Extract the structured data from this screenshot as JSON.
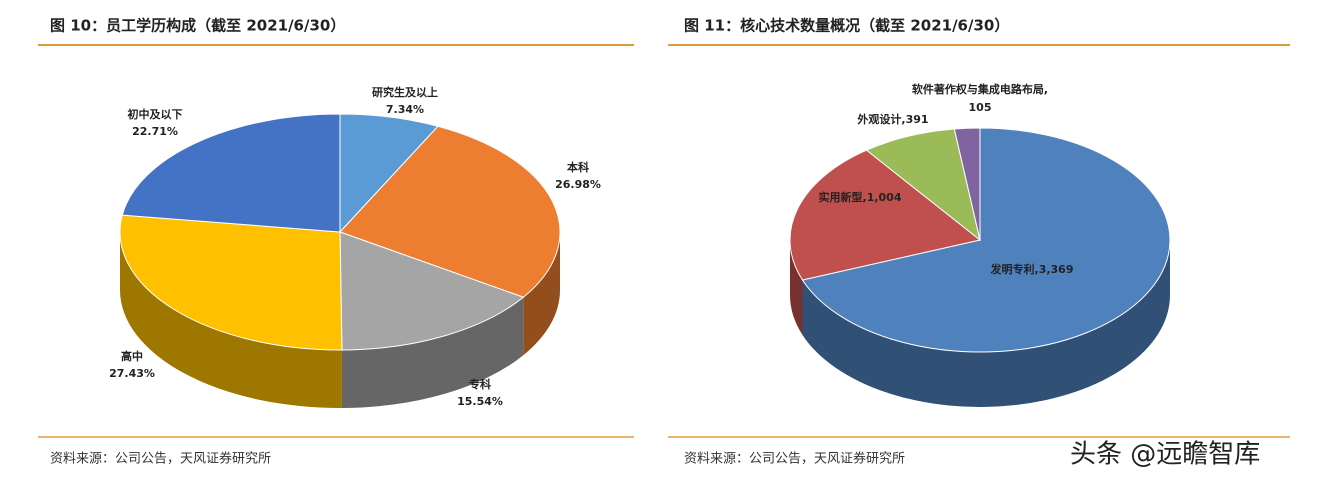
{
  "chart_data": [
    {
      "type": "pie3d",
      "title": "图 10：员工学历构成（截至 2021/6/30）",
      "categories": [
        "研究生及以上",
        "本科",
        "专科",
        "高中",
        "初中及以下"
      ],
      "values": [
        7.34,
        26.98,
        15.54,
        27.43,
        22.71
      ],
      "value_labels": [
        "7.34%",
        "26.98%",
        "15.54%",
        "27.43%",
        "22.71%"
      ],
      "colors": [
        "#5b9bd5",
        "#ed7d31",
        "#a5a5a5",
        "#ffc000",
        "#4472c4"
      ],
      "source": "资料来源：公司公告，天风证券研究所"
    },
    {
      "type": "pie3d",
      "title": "图 11：核心技术数量概况（截至 2021/6/30）",
      "categories": [
        "发明专利",
        "实用新型",
        "外观设计",
        "软件著作权与集成电路布局"
      ],
      "values": [
        3369,
        1004,
        391,
        105
      ],
      "value_labels": [
        "3,369",
        "1,004",
        "391",
        "105"
      ],
      "label_separator": ",",
      "colors": [
        "#4f81bd",
        "#c0504d",
        "#9bbb59",
        "#8064a2"
      ],
      "source": "资料来源：公司公告，天风证券研究所"
    }
  ],
  "watermark": "头条 @远瞻智库"
}
